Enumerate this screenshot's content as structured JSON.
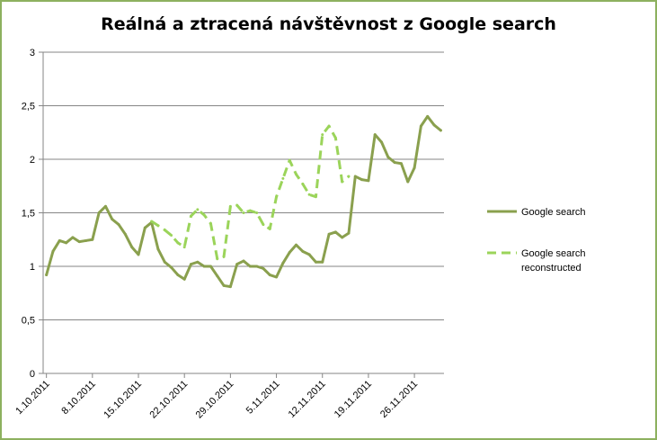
{
  "chart_data": {
    "type": "line",
    "title": "Reálná a ztracená návštěvnost z Google search",
    "xlabel": "",
    "ylabel": "",
    "ylim": [
      0,
      3
    ],
    "yticks": [
      "0",
      "0,5",
      "1",
      "1,5",
      "2",
      "2,5",
      "3"
    ],
    "yticks_values": [
      0,
      0.5,
      1,
      1.5,
      2,
      2.5,
      3
    ],
    "xtick_labels": [
      "1.10.2011",
      "8.10.2011",
      "15.10.2011",
      "22.10.2011",
      "29.10.2011",
      "5.11.2011",
      "12.11.2011",
      "19.11.2011",
      "26.11.2011"
    ],
    "xtick_positions": [
      0,
      7,
      14,
      21,
      28,
      35,
      42,
      49,
      56
    ],
    "x_count": 61,
    "grid": "horizontal",
    "legend_position": "right",
    "series": [
      {
        "name": "Google search",
        "style": "solid",
        "color": "#8aa04e",
        "start_index": 0,
        "values": [
          0.92,
          1.14,
          1.24,
          1.22,
          1.27,
          1.23,
          1.24,
          1.25,
          1.5,
          1.56,
          1.44,
          1.39,
          1.3,
          1.18,
          1.11,
          1.36,
          1.41,
          1.16,
          1.04,
          0.99,
          0.92,
          0.88,
          1.02,
          1.04,
          1.0,
          1.0,
          0.91,
          0.82,
          0.81,
          1.02,
          1.05,
          1.0,
          1.0,
          0.98,
          0.92,
          0.9,
          1.03,
          1.13,
          1.2,
          1.14,
          1.11,
          1.04,
          1.04,
          1.3,
          1.32,
          1.27,
          1.31,
          1.84,
          1.81,
          1.8,
          2.23,
          2.16,
          2.02,
          1.97,
          1.96,
          1.79,
          1.92,
          2.31,
          2.4,
          2.32,
          2.27
        ]
      },
      {
        "name": "Google search reconstructed",
        "style": "dashed",
        "color": "#9bd45a",
        "start_index": 16,
        "values": [
          1.42,
          1.38,
          1.34,
          1.29,
          1.22,
          1.18,
          1.47,
          1.53,
          1.48,
          1.4,
          1.07,
          1.09,
          1.56,
          1.57,
          1.5,
          1.52,
          1.5,
          1.39,
          1.35,
          1.65,
          1.82,
          1.99,
          1.86,
          1.77,
          1.67,
          1.65,
          2.23,
          2.31,
          2.2,
          1.79,
          1.84
        ]
      }
    ]
  }
}
